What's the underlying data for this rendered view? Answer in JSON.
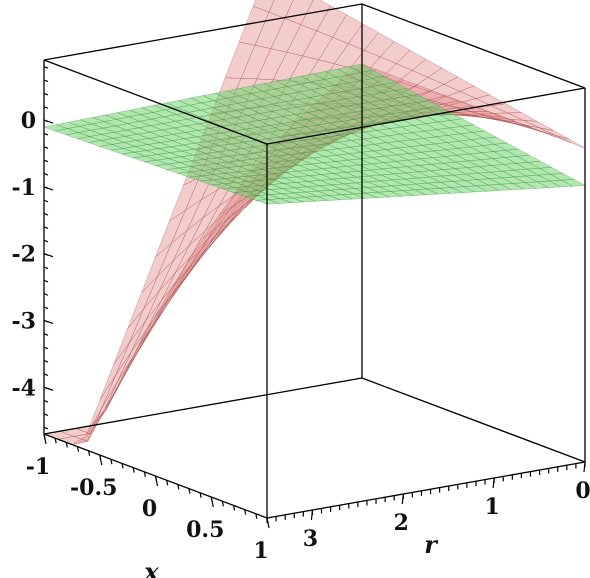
{
  "chart_data": {
    "type": "surface3d",
    "title": "",
    "x_axis": {
      "label": "x",
      "range": [
        -1,
        1
      ],
      "ticks": [
        {
          "value": -1,
          "label": "-1"
        },
        {
          "value": -0.5,
          "label": "-0.5"
        },
        {
          "value": 0,
          "label": "0"
        },
        {
          "value": 0.5,
          "label": "0.5"
        },
        {
          "value": 1,
          "label": "1"
        }
      ]
    },
    "r_axis": {
      "label": "r",
      "range": [
        0,
        3.5
      ],
      "ticks": [
        {
          "value": 3,
          "label": "3"
        },
        {
          "value": 2,
          "label": "2"
        },
        {
          "value": 1,
          "label": "1"
        },
        {
          "value": 0,
          "label": "0"
        }
      ]
    },
    "z_axis": {
      "label": "",
      "range": [
        -4.7,
        0.9
      ],
      "ticks": [
        {
          "value": 0,
          "label": "0"
        },
        {
          "value": -1,
          "label": "-1"
        },
        {
          "value": -2,
          "label": "-2"
        },
        {
          "value": -3,
          "label": "-3"
        },
        {
          "value": -4,
          "label": "-4"
        }
      ]
    },
    "surfaces": [
      {
        "color": "#e38585",
        "opacity": 0.42,
        "description": "curved surface"
      },
      {
        "color": "#6fd66f",
        "opacity": 0.55,
        "description": "flat plane"
      }
    ]
  }
}
